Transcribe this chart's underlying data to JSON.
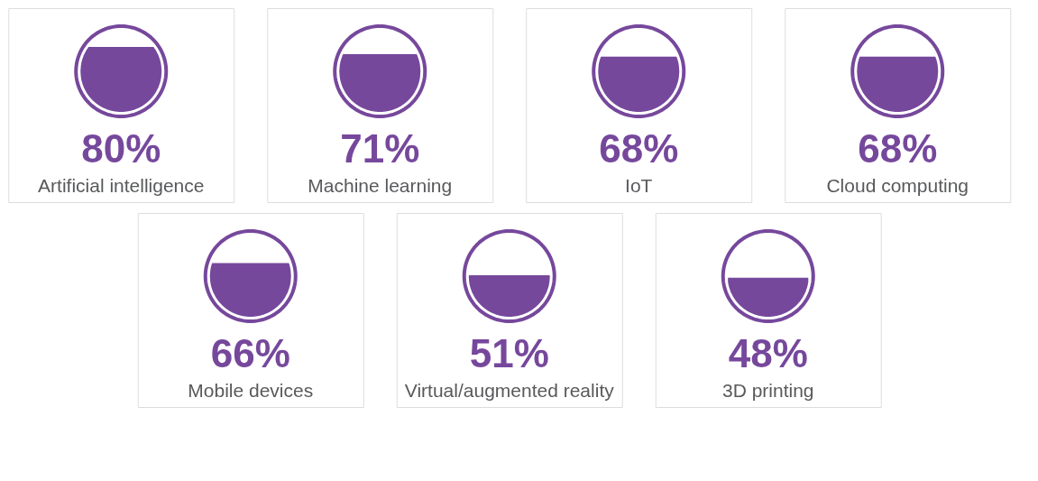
{
  "chart_data": {
    "type": "other",
    "categories": [
      "Artificial intelligence",
      "Machine learning",
      "IoT",
      "Cloud computing",
      "Mobile devices",
      "Virtual/augmented reality",
      "3D printing"
    ],
    "values": [
      80,
      71,
      68,
      68,
      66,
      51,
      48
    ],
    "value_labels": [
      "80%",
      "71%",
      "68%",
      "68%",
      "66%",
      "51%",
      "48%"
    ],
    "color": "#76489c"
  }
}
